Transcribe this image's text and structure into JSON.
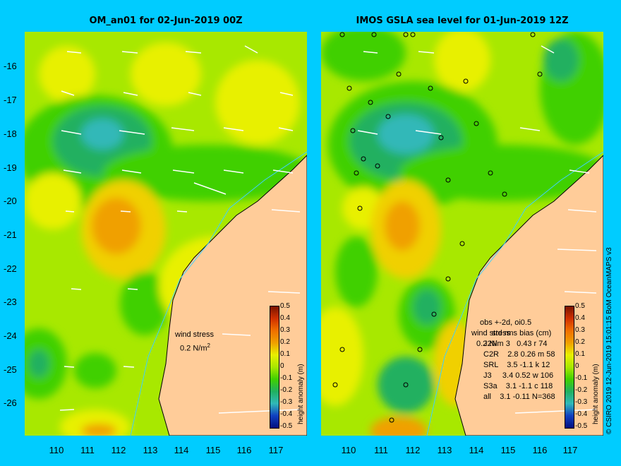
{
  "titles": {
    "left": "OM_an01 for 02-Jun-2019 00Z",
    "right": "IMOS GSLA sea level  for 01-Jun-2019 12Z"
  },
  "axes": {
    "lat_ticks": [
      "-16",
      "-17",
      "-18",
      "-19",
      "-20",
      "-21",
      "-22",
      "-23",
      "-24",
      "-25",
      "-26"
    ],
    "lon_ticks": [
      "110",
      "111",
      "112",
      "113",
      "114",
      "115",
      "116",
      "117"
    ],
    "lat_range": [
      -27.0,
      -15.0
    ],
    "lon_range": [
      109.0,
      118.0
    ]
  },
  "colorbar": {
    "label": "height anomaly (m)",
    "ticks": [
      "0.5",
      "0.4",
      "0.3",
      "0.2",
      "0.1",
      "0",
      "-0.1",
      "-0.2",
      "-0.3",
      "-0.4",
      "-0.5"
    ],
    "colors": [
      "#7a1400",
      "#d03000",
      "#f07000",
      "#f0a000",
      "#f0d000",
      "#e8f000",
      "#a8e800",
      "#40d000",
      "#20b060",
      "#30b8b8",
      "#2080e0",
      "#1040c0",
      "#001080"
    ]
  },
  "left_panel": {
    "wind_label_1": "wind stress",
    "wind_label_2": "0.2 N/m",
    "wind_unit_sup": "2"
  },
  "right_panel": {
    "obs_header": "obs +-2d, oi0.5",
    "stats_header": "std rms bias (cm)",
    "wind_overlap_1": "wind stress",
    "wind_overlap_2": "0.2 N/m",
    "stats_rows": [
      "J2N    3   0.43 r 74",
      "C2R    2.8 0.26 m 58",
      "SRL    3.5 -1.1 k 12",
      "J3     3.4 0.52 w 106",
      "S3a    3.1 -1.1 c 118",
      "all    3.1 -0.11 N=368"
    ]
  },
  "credit": "© CSIRO 2019   12-Jun-2019 15:01:15 BoM OceanMAPS v3",
  "colors": {
    "background": "#00ccff",
    "land": "#ffcc99",
    "coast": "#000000",
    "isobath": "#40d0ff",
    "arrow": "#ffffff"
  }
}
